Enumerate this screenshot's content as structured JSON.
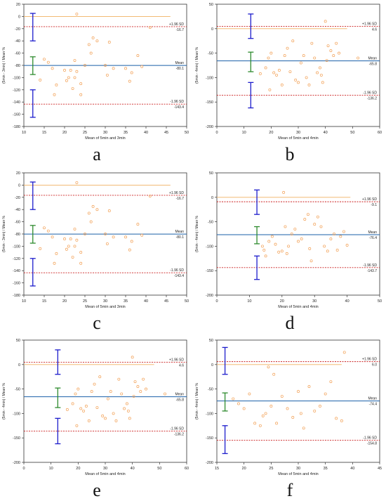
{
  "chart_data": [
    {
      "type": "scatter",
      "panel_label": "a",
      "xlabel": "Mean of 5min and 3min",
      "ylabel": "(5min - 3min) / Mean %",
      "xlim": [
        10,
        50
      ],
      "ylim": [
        -180,
        20
      ],
      "xticks": [
        10,
        15,
        20,
        25,
        30,
        35,
        40,
        45,
        50
      ],
      "yticks": [
        -180,
        -160,
        -140,
        -120,
        -100,
        -80,
        -60,
        -40,
        -20,
        0,
        20
      ],
      "mean": -80.1,
      "upper": -16.7,
      "lower": -143.4,
      "mean_text": "Mean",
      "mean_value": "-80.1",
      "upper_text": "+1.96 SD",
      "upper_value": "-16.7",
      "lower_text": "-1.96 SD",
      "lower_value": "-143.4",
      "ci_x": 12.2,
      "ci_upper": [
        -40,
        5
      ],
      "ci_mean": [
        -95,
        -66
      ],
      "ci_lower": [
        -165,
        -120
      ],
      "zero_line": {
        "y": 0,
        "x_end": 46
      },
      "points": [
        [
          14,
          -104
        ],
        [
          15,
          -70
        ],
        [
          16,
          -75
        ],
        [
          17,
          -85
        ],
        [
          17.5,
          -128
        ],
        [
          18,
          -112
        ],
        [
          20,
          -88
        ],
        [
          20.5,
          -105
        ],
        [
          21,
          -100
        ],
        [
          21.5,
          -88
        ],
        [
          22,
          -118
        ],
        [
          22.5,
          -72
        ],
        [
          22.5,
          -100
        ],
        [
          23,
          4
        ],
        [
          23,
          -90
        ],
        [
          24,
          -110
        ],
        [
          24,
          -128
        ],
        [
          25,
          -80
        ],
        [
          26,
          -46
        ],
        [
          26.5,
          -60
        ],
        [
          27,
          -35
        ],
        [
          28,
          -40
        ],
        [
          30,
          -80
        ],
        [
          30.5,
          -96
        ],
        [
          31,
          -42
        ],
        [
          32,
          -85
        ],
        [
          35,
          -85
        ],
        [
          36,
          -106
        ],
        [
          36.5,
          -92
        ],
        [
          38,
          -64
        ],
        [
          39,
          -82
        ],
        [
          41,
          -18
        ]
      ]
    },
    {
      "type": "scatter",
      "panel_label": "b",
      "xlabel": "Mean of 5min and 4min",
      "ylabel": "(5min - 4min) / Mean %",
      "xlim": [
        0,
        60
      ],
      "ylim": [
        -200,
        50
      ],
      "xticks": [
        0,
        10,
        20,
        30,
        40,
        50,
        60
      ],
      "yticks": [
        -200,
        -150,
        -100,
        -50,
        0,
        50
      ],
      "mean": -65.8,
      "upper": 4.6,
      "lower": -136.2,
      "mean_text": "Mean",
      "mean_value": "-65.8",
      "upper_text": "+1.96 SD",
      "upper_value": "4.6",
      "lower_text": "-1.96 SD",
      "lower_value": "-136.2",
      "ci_x": 12.5,
      "ci_upper": [
        -20,
        30
      ],
      "ci_mean": [
        -88,
        -48
      ],
      "ci_lower": [
        -162,
        -110
      ],
      "zero_line": {
        "y": 0,
        "x_end": 48
      },
      "points": [
        [
          16,
          -92
        ],
        [
          18,
          -80
        ],
        [
          19,
          -60
        ],
        [
          19.5,
          -125
        ],
        [
          20,
          -50
        ],
        [
          21,
          -90
        ],
        [
          22,
          -95
        ],
        [
          23,
          -85
        ],
        [
          24,
          -115
        ],
        [
          25,
          -55
        ],
        [
          26,
          -40
        ],
        [
          27,
          -88
        ],
        [
          28,
          -25
        ],
        [
          29,
          -105
        ],
        [
          30,
          -110
        ],
        [
          31,
          -70
        ],
        [
          32,
          -55
        ],
        [
          33,
          -100
        ],
        [
          34,
          -115
        ],
        [
          35,
          -30
        ],
        [
          36,
          -60
        ],
        [
          37,
          -90
        ],
        [
          38,
          -80
        ],
        [
          38.5,
          -95
        ],
        [
          39,
          -110
        ],
        [
          40,
          15
        ],
        [
          40.5,
          -65
        ],
        [
          41,
          -35
        ],
        [
          42,
          -45
        ],
        [
          43,
          -55
        ],
        [
          44,
          -30
        ],
        [
          45,
          -50
        ],
        [
          52,
          -60
        ]
      ]
    },
    {
      "type": "scatter",
      "panel_label": "c",
      "xlabel": "Mean of 5min and 3min",
      "ylabel": "(5min - 3min) / Mean %",
      "xlim": [
        10,
        50
      ],
      "ylim": [
        -180,
        20
      ],
      "xticks": [
        10,
        15,
        20,
        25,
        30,
        35,
        40,
        45,
        50
      ],
      "yticks": [
        -180,
        -160,
        -140,
        -120,
        -100,
        -80,
        -60,
        -40,
        -20,
        0,
        20
      ],
      "mean": -80.1,
      "upper": -16.7,
      "lower": -143.4,
      "mean_text": "Mean",
      "mean_value": "-80.1",
      "upper_text": "+1.96 SD",
      "upper_value": "-16.7",
      "lower_text": "-1.96 SD",
      "lower_value": "-143.4",
      "ci_x": 12.2,
      "ci_upper": [
        -40,
        5
      ],
      "ci_mean": [
        -95,
        -66
      ],
      "ci_lower": [
        -165,
        -120
      ],
      "zero_line": {
        "y": 0,
        "x_end": 46
      },
      "points": [
        [
          14,
          -104
        ],
        [
          15,
          -70
        ],
        [
          16,
          -75
        ],
        [
          17,
          -85
        ],
        [
          17.5,
          -128
        ],
        [
          18,
          -112
        ],
        [
          20,
          -88
        ],
        [
          20.5,
          -105
        ],
        [
          21,
          -100
        ],
        [
          21.5,
          -88
        ],
        [
          22,
          -118
        ],
        [
          22.5,
          -72
        ],
        [
          22.5,
          -100
        ],
        [
          23,
          4
        ],
        [
          23,
          -90
        ],
        [
          24,
          -110
        ],
        [
          24,
          -128
        ],
        [
          25,
          -80
        ],
        [
          26,
          -46
        ],
        [
          26.5,
          -60
        ],
        [
          27,
          -35
        ],
        [
          28,
          -40
        ],
        [
          30,
          -80
        ],
        [
          30.5,
          -96
        ],
        [
          31,
          -42
        ],
        [
          32,
          -85
        ],
        [
          35,
          -85
        ],
        [
          36,
          -106
        ],
        [
          36.5,
          -92
        ],
        [
          38,
          -64
        ],
        [
          39,
          -82
        ],
        [
          41,
          -18
        ]
      ]
    },
    {
      "type": "scatter",
      "panel_label": "d",
      "xlabel": "Mean of 5min and 4min",
      "ylabel": "(5min - 4min) / Mean %",
      "xlim": [
        0,
        50
      ],
      "ylim": [
        -200,
        50
      ],
      "xticks": [
        0,
        10,
        20,
        30,
        40,
        50
      ],
      "yticks": [
        -200,
        -150,
        -100,
        -50,
        0,
        50
      ],
      "mean": -76.4,
      "upper": -9.1,
      "lower": -143.7,
      "mean_text": "Mean",
      "mean_value": "-76.4",
      "upper_text": "+1.96 SD",
      "upper_value": "-9.1",
      "lower_text": "-1.96 SD",
      "lower_value": "-143.7",
      "ci_x": 12.3,
      "ci_upper": [
        -35,
        15
      ],
      "ci_mean": [
        -95,
        -60
      ],
      "ci_lower": [
        -168,
        -120
      ],
      "zero_line": {
        "y": 0,
        "x_end": 41
      },
      "points": [
        [
          14,
          -100
        ],
        [
          14.5,
          -108
        ],
        [
          15,
          -120
        ],
        [
          16,
          -90
        ],
        [
          17,
          -80
        ],
        [
          18,
          -96
        ],
        [
          19,
          -112
        ],
        [
          20,
          -110
        ],
        [
          20.5,
          10
        ],
        [
          21,
          -60
        ],
        [
          21.5,
          -115
        ],
        [
          22,
          -100
        ],
        [
          23,
          -75
        ],
        [
          24,
          -65
        ],
        [
          25,
          -90
        ],
        [
          26,
          -85
        ],
        [
          27,
          -45
        ],
        [
          28,
          -35
        ],
        [
          28.5,
          -105
        ],
        [
          29,
          -130
        ],
        [
          30,
          -55
        ],
        [
          31,
          -40
        ],
        [
          32,
          -60
        ],
        [
          33,
          -100
        ],
        [
          34,
          -110
        ],
        [
          35,
          -85
        ],
        [
          36,
          -75
        ],
        [
          37,
          -108
        ],
        [
          38,
          -80
        ],
        [
          39,
          -70
        ],
        [
          40,
          -98
        ]
      ]
    },
    {
      "type": "scatter",
      "panel_label": "e",
      "xlabel": "Mean of 5min and 4min",
      "ylabel": "(5min - 4min) / Mean %",
      "xlim": [
        0,
        60
      ],
      "ylim": [
        -200,
        50
      ],
      "xticks": [
        0,
        10,
        20,
        30,
        40,
        50,
        60
      ],
      "yticks": [
        -200,
        -150,
        -100,
        -50,
        0,
        50
      ],
      "mean": -65.8,
      "upper": 4.6,
      "lower": -136.2,
      "mean_text": "Mean",
      "mean_value": "-65.8",
      "upper_text": "+1.96 SD",
      "upper_value": "4.6",
      "lower_text": "-1.96 SD",
      "lower_value": "-136.2",
      "ci_x": 12.5,
      "ci_upper": [
        -20,
        30
      ],
      "ci_mean": [
        -88,
        -48
      ],
      "ci_lower": [
        -162,
        -110
      ],
      "zero_line": {
        "y": 0,
        "x_end": 48
      },
      "points": [
        [
          16,
          -92
        ],
        [
          18,
          -80
        ],
        [
          19,
          -60
        ],
        [
          19.5,
          -125
        ],
        [
          20,
          -50
        ],
        [
          21,
          -90
        ],
        [
          22,
          -95
        ],
        [
          23,
          -85
        ],
        [
          24,
          -115
        ],
        [
          25,
          -55
        ],
        [
          26,
          -40
        ],
        [
          27,
          -88
        ],
        [
          28,
          -25
        ],
        [
          29,
          -105
        ],
        [
          30,
          -110
        ],
        [
          31,
          -70
        ],
        [
          32,
          -55
        ],
        [
          33,
          -100
        ],
        [
          34,
          -115
        ],
        [
          35,
          -30
        ],
        [
          36,
          -60
        ],
        [
          37,
          -90
        ],
        [
          38,
          -80
        ],
        [
          38.5,
          -95
        ],
        [
          39,
          -110
        ],
        [
          40,
          15
        ],
        [
          40.5,
          -65
        ],
        [
          41,
          -35
        ],
        [
          42,
          -45
        ],
        [
          43,
          -55
        ],
        [
          44,
          -30
        ],
        [
          45,
          -50
        ],
        [
          52,
          -60
        ]
      ]
    },
    {
      "type": "scatter",
      "panel_label": "f",
      "xlabel": "Mean of 5min and 4min",
      "ylabel": "(5min - 4min) / Mean %",
      "xlim": [
        15,
        45
      ],
      "ylim": [
        -200,
        50
      ],
      "xticks": [
        15,
        20,
        25,
        30,
        35,
        40,
        45
      ],
      "yticks": [
        -200,
        -150,
        -100,
        -50,
        0,
        50
      ],
      "mean": -74.4,
      "upper": 6.0,
      "lower": -154.8,
      "mean_text": "Mean",
      "mean_value": "-74.4",
      "upper_text": "+1.96 SD",
      "upper_value": "6.0",
      "lower_text": "-1.96 SD",
      "lower_value": "-154.8",
      "ci_x": 16.5,
      "ci_upper": [
        -20,
        35
      ],
      "ci_mean": [
        -95,
        -58
      ],
      "ci_lower": [
        -182,
        -125
      ],
      "zero_line": {
        "y": 0,
        "x_end": 38
      },
      "points": [
        [
          18,
          -70
        ],
        [
          19,
          -80
        ],
        [
          20,
          -90
        ],
        [
          21,
          -60
        ],
        [
          22,
          -120
        ],
        [
          23,
          -125
        ],
        [
          23.5,
          -105
        ],
        [
          24,
          -100
        ],
        [
          24.5,
          -5
        ],
        [
          25,
          -85
        ],
        [
          25.5,
          -20
        ],
        [
          26,
          -120
        ],
        [
          27,
          -65
        ],
        [
          28,
          -90
        ],
        [
          29,
          -108
        ],
        [
          30,
          -55
        ],
        [
          30.5,
          -100
        ],
        [
          31,
          -130
        ],
        [
          32,
          -45
        ],
        [
          33,
          -95
        ],
        [
          34,
          -85
        ],
        [
          35,
          -60
        ],
        [
          36,
          -35
        ],
        [
          37,
          -110
        ],
        [
          38,
          -115
        ],
        [
          38.5,
          25
        ]
      ]
    }
  ]
}
